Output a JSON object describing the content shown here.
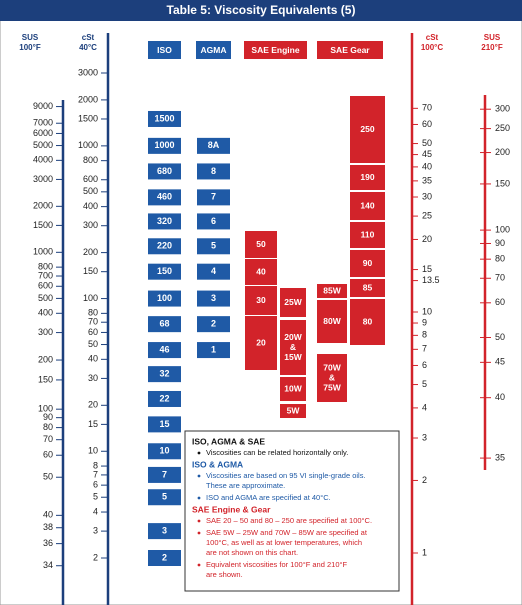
{
  "title": "Table 5: Viscosity Equivalents (5)",
  "axes": {
    "sus100": {
      "unit": "SUS",
      "temp": "100°F",
      "ticks": [
        9000,
        7000,
        6000,
        5000,
        4000,
        3000,
        2000,
        1500,
        1000,
        800,
        700,
        600,
        500,
        400,
        300,
        200,
        150,
        100,
        90,
        80,
        70,
        60,
        50,
        40,
        38,
        36,
        34
      ]
    },
    "cst40": {
      "unit": "cSt",
      "temp": "40°C",
      "ticks": [
        3000,
        2000,
        1500,
        1000,
        800,
        600,
        500,
        400,
        300,
        200,
        150,
        100,
        80,
        70,
        60,
        50,
        40,
        30,
        20,
        15,
        10,
        8,
        7,
        6,
        5,
        4,
        3,
        2
      ]
    },
    "cst100": {
      "unit": "cSt",
      "temp": "100°C",
      "ticks": [
        70,
        60,
        50,
        45,
        40,
        35,
        30,
        25,
        20,
        15,
        13.5,
        10,
        9,
        8,
        7,
        6,
        5,
        4,
        3,
        2,
        1
      ]
    },
    "sus210": {
      "unit": "SUS",
      "temp": "210°F",
      "ticks": [
        300,
        250,
        200,
        150,
        100,
        90,
        80,
        70,
        60,
        50,
        45,
        40,
        35
      ]
    }
  },
  "grades": {
    "iso": {
      "label": "ISO",
      "values": [
        1500,
        1000,
        680,
        460,
        320,
        220,
        150,
        100,
        68,
        46,
        32,
        22,
        15,
        10,
        7,
        5,
        3,
        2
      ]
    },
    "agma": {
      "label": "AGMA",
      "values": [
        "8A",
        "8",
        "7",
        "6",
        "5",
        "4",
        "3",
        "2",
        "1"
      ]
    },
    "sae_engine": {
      "label": "SAE Engine",
      "values": [
        [
          "50"
        ],
        [
          "40"
        ],
        [
          "30"
        ],
        [
          "20"
        ],
        [
          "25W"
        ],
        [
          "20W",
          "&",
          "15W"
        ],
        [
          "10W"
        ],
        [
          "5W"
        ]
      ]
    },
    "sae_gear": {
      "label": "SAE Gear",
      "values": [
        [
          "85W"
        ],
        [
          "80W"
        ],
        [
          "70W",
          "&",
          "75W"
        ],
        [
          "250"
        ],
        [
          "190"
        ],
        [
          "140"
        ],
        [
          "110"
        ],
        [
          "90"
        ],
        [
          "85"
        ],
        [
          "80"
        ]
      ]
    }
  },
  "note": [
    {
      "heading": "ISO, AGMA & SAE",
      "items": [
        [
          "Viscosities can be related horizontally only."
        ]
      ]
    },
    {
      "heading": "ISO & AGMA",
      "items": [
        [
          "Viscosities are based on 95 VI single-grade oils.",
          "These are approximate."
        ],
        [
          "ISO and AGMA are specified at 40°C."
        ]
      ]
    },
    {
      "heading": "SAE Engine & Gear",
      "items": [
        [
          "SAE 20 – 50 and 80 – 250 are specified at 100°C."
        ],
        [
          "SAE 5W – 25W and 70W – 85W are specified at",
          "100°C, as well as at lower temperatures, which",
          "are not shown on this chart."
        ],
        [
          "Equivalent viscosities for 100°F and 210°F",
          "are shown."
        ]
      ]
    }
  ]
}
